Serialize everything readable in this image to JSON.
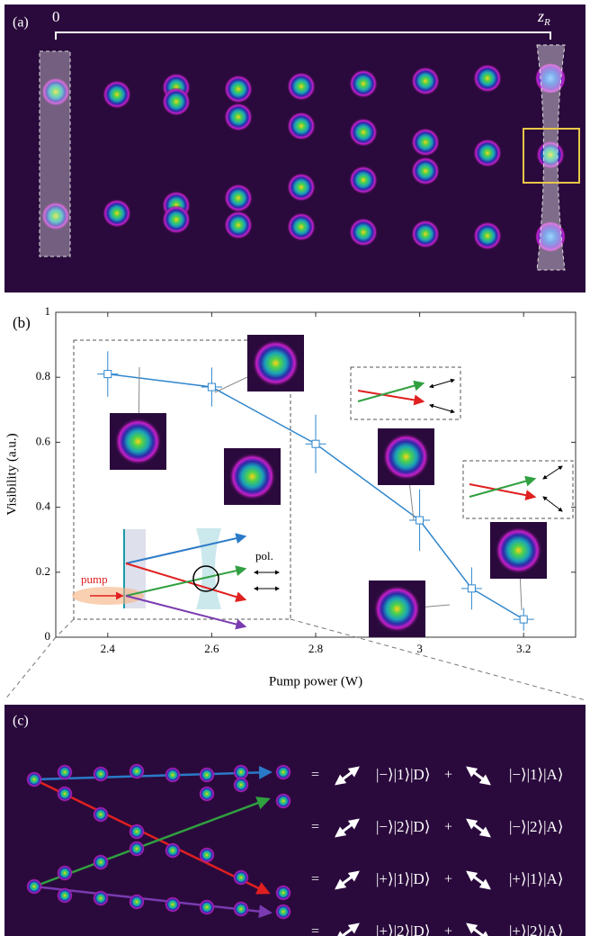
{
  "panel_a": {
    "label": "(a)",
    "start": "0",
    "end": "z",
    "end_sub": "R"
  },
  "chart_data": {
    "type": "line",
    "label": "(b)",
    "x": [
      2.4,
      2.6,
      2.8,
      3,
      3.1,
      3.2
    ],
    "series": [
      {
        "color": "#2f86cc",
        "values": [
          0.81,
          0.77,
          0.595,
          0.36,
          0.15,
          0.055
        ],
        "errors": [
          0.07,
          0.06,
          0.09,
          0.095,
          0.065,
          0.035
        ],
        "x_errors": [
          0.02,
          0.02,
          0.02,
          0.02,
          0.02,
          0.02
        ]
      }
    ],
    "xlabel": "Pump power (W)",
    "ylabel": "Visibility (a.u.)",
    "xlim": [
      2.3,
      3.3
    ],
    "ylim": [
      0,
      1
    ],
    "xticks": [
      2.4,
      2.6,
      2.8,
      3,
      3.2
    ],
    "yticks": [
      0,
      0.2,
      0.4,
      0.6,
      0.8,
      1
    ],
    "grid": false,
    "inset_labels": [
      "pump",
      "pol."
    ]
  },
  "panel_c": {
    "label": "(c)",
    "rows": [
      {
        "equals": "=",
        "term1": "|−⟩|1⟩|D⟩",
        "plus": "+",
        "term2": "|−⟩|1⟩|A⟩"
      },
      {
        "equals": "=",
        "term1": "|−⟩|2⟩|D⟩",
        "plus": "+",
        "term2": "|−⟩|2⟩|A⟩"
      },
      {
        "equals": "=",
        "term1": "|+⟩|1⟩|D⟩",
        "plus": "+",
        "term2": "|+⟩|1⟩|A⟩"
      },
      {
        "equals": "=",
        "term1": "|+⟩|2⟩|D⟩",
        "plus": "+",
        "term2": "|+⟩|2⟩|A⟩"
      }
    ]
  }
}
